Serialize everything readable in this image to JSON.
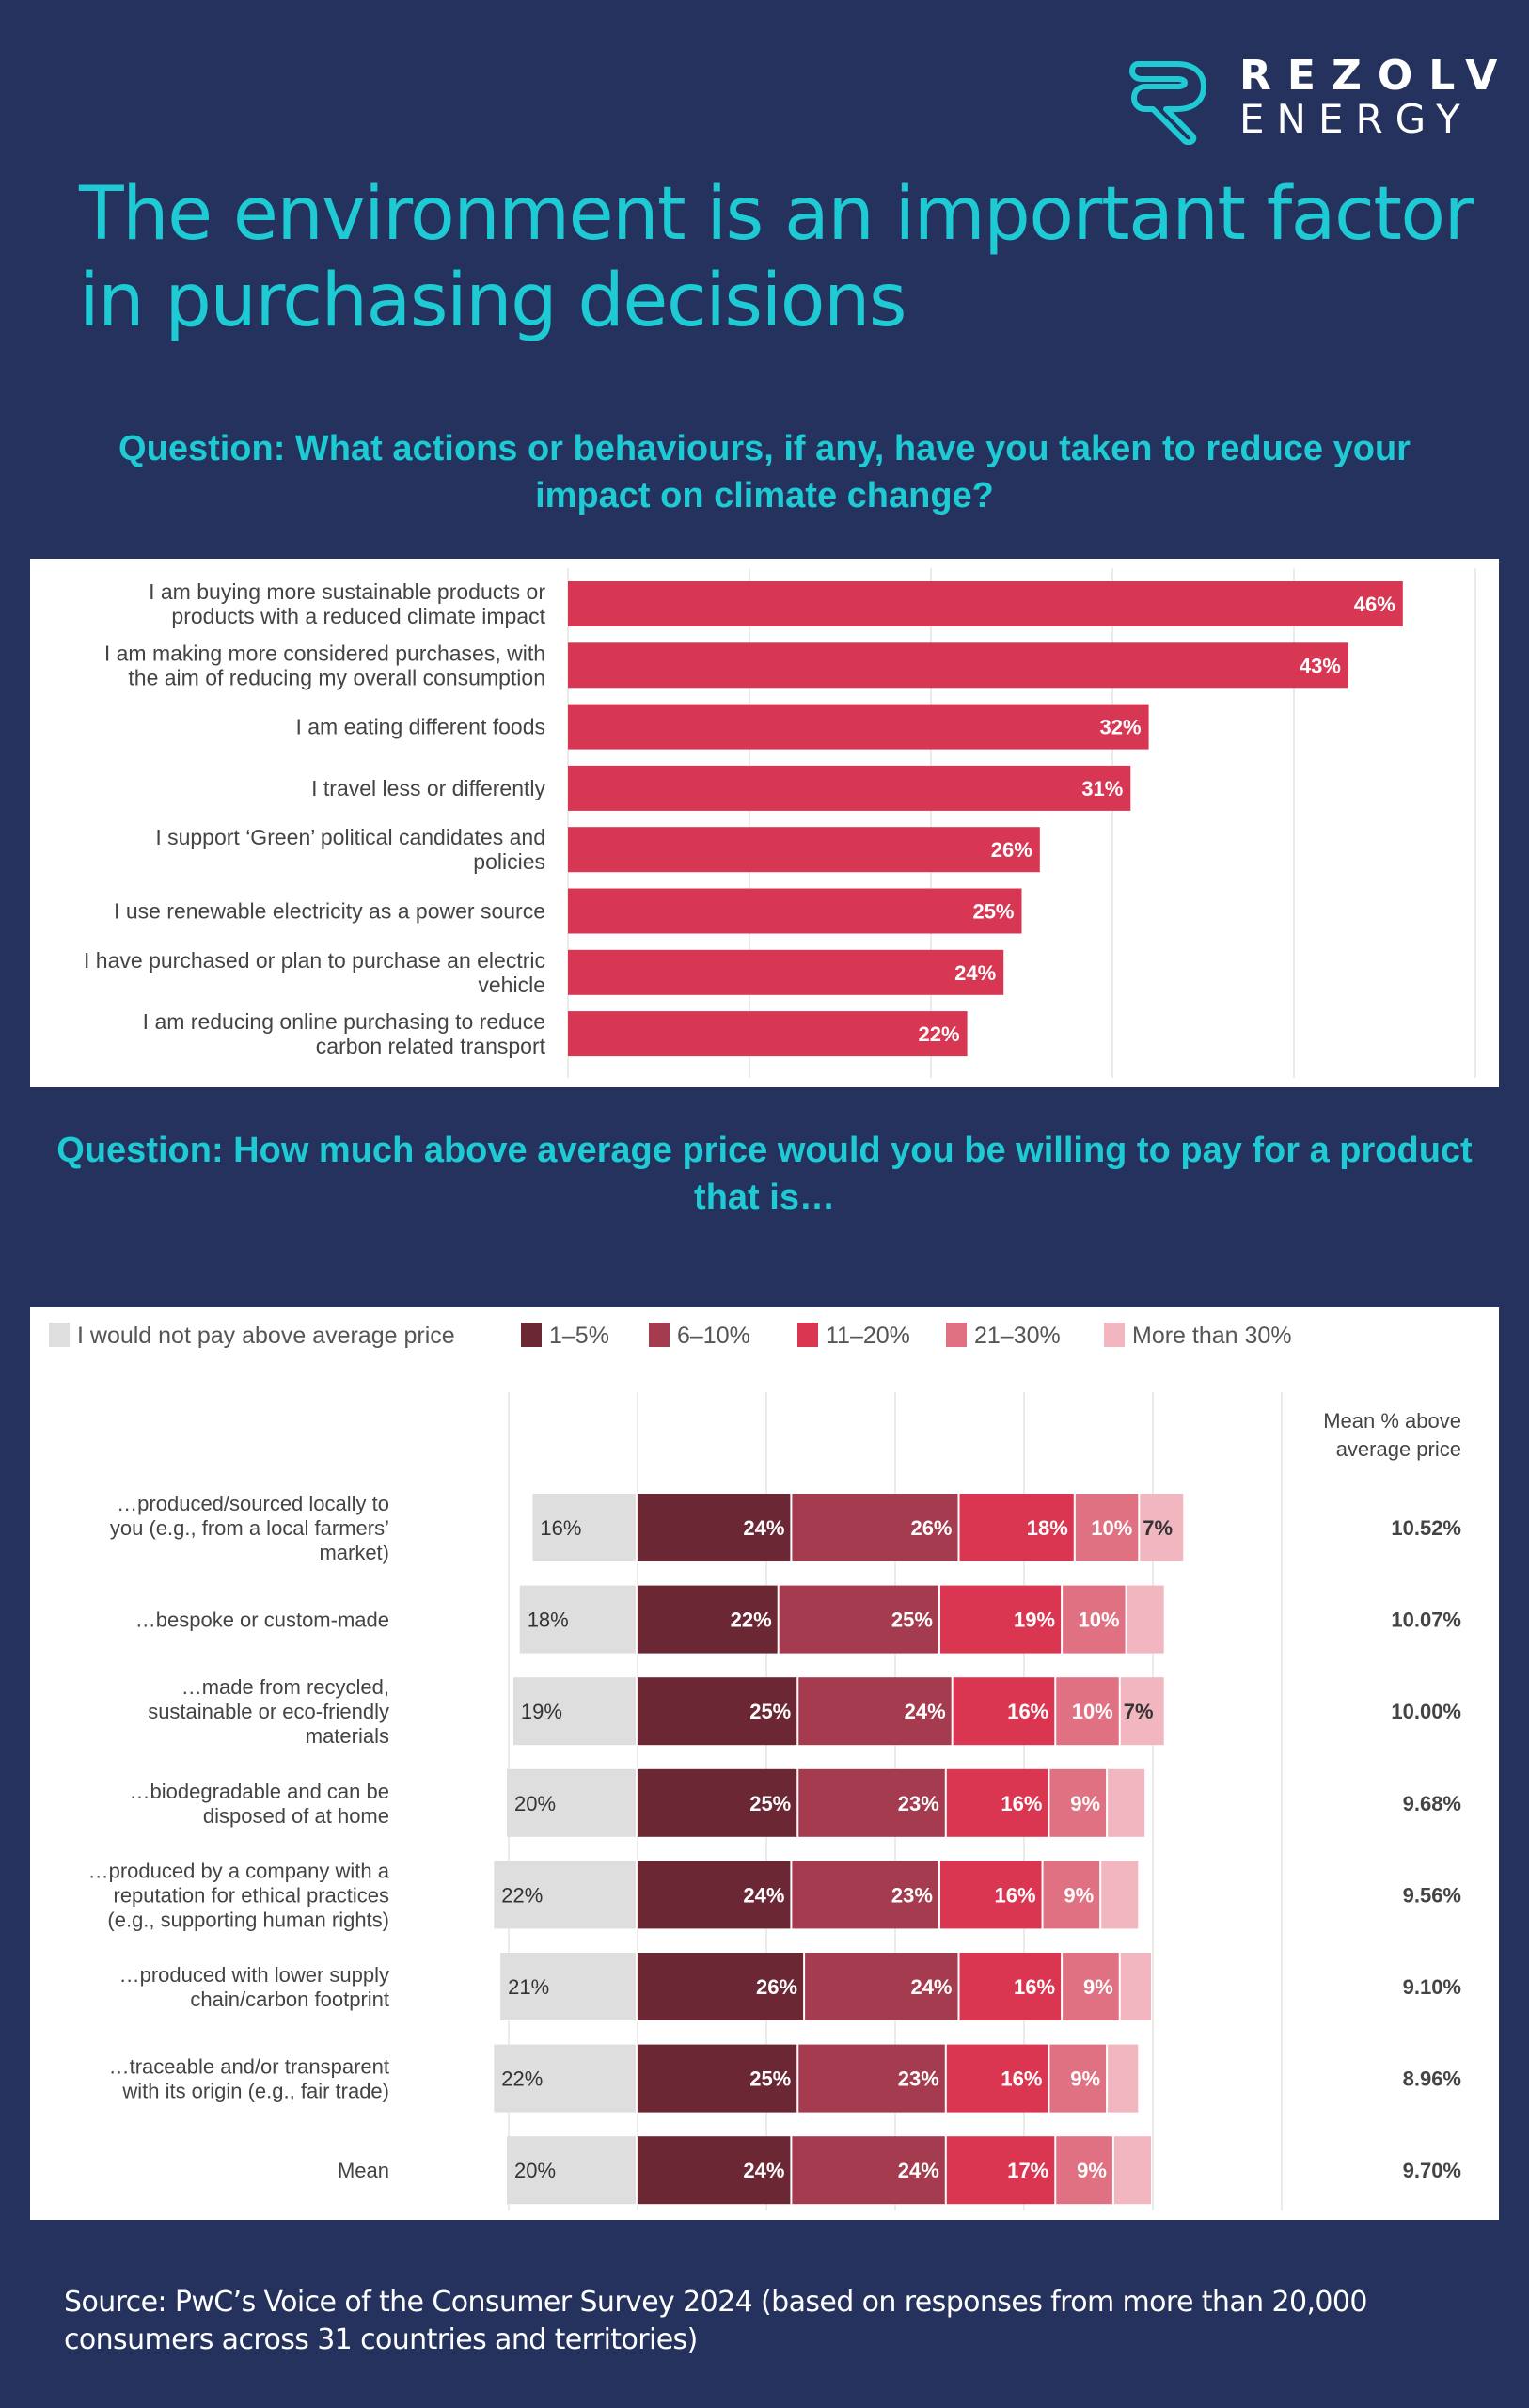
{
  "brand": {
    "logo_icon": "rezolv-r-icon",
    "name_line1": "REZOLV",
    "name_line2": "ENERGY",
    "accent_color": "#1ecad3",
    "background_color": "#25325e"
  },
  "page_title": "The environment is an important factor in purchasing decisions",
  "page_title_lines": [
    "The environment is an important factor",
    "in purchasing decisions"
  ],
  "question1": "Question: What actions or behaviours, if any, have you taken to reduce your impact on climate change?",
  "question2": "Question: How much above average price would you be willing to pay for a product that is…",
  "source": "Source: PwC’s Voice of the Consumer Survey 2024 (based on responses from more than 20,000 consumers across 31 countries and territories)",
  "chart_data": [
    {
      "type": "bar",
      "orientation": "horizontal",
      "title": "What actions or behaviours, if any, have you taken to reduce your impact on climate change?",
      "xlabel": "",
      "ylabel": "",
      "xlim": [
        0,
        50
      ],
      "grid": true,
      "bar_color": "#d73753",
      "categories": [
        [
          "I am buying more sustainable products or",
          "products with a reduced climate impact"
        ],
        [
          "I am making more considered purchases, with",
          "the aim of reducing my overall consumption"
        ],
        [
          "I am eating different foods"
        ],
        [
          "I travel less or differently"
        ],
        [
          "I support ‘Green’ political candidates and",
          "policies"
        ],
        [
          "I use renewable electricity as a power source"
        ],
        [
          "I have purchased or plan to purchase an electric",
          "vehicle"
        ],
        [
          "I am reducing online purchasing to reduce",
          "carbon related transport"
        ]
      ],
      "values": [
        46,
        43,
        32,
        31,
        26,
        25,
        24,
        22
      ],
      "data_labels": [
        "46%",
        "43%",
        "32%",
        "31%",
        "26%",
        "25%",
        "24%",
        "22%"
      ]
    },
    {
      "type": "bar",
      "orientation": "horizontal",
      "stacked": true,
      "diverging": true,
      "title": "How much above average price would you be willing to pay for a product that is…",
      "xlabel": "",
      "ylabel": "",
      "xlim": [
        -30,
        90
      ],
      "grid": true,
      "legend_position": "top-left",
      "mean_column_header": [
        "Mean % above",
        "average price"
      ],
      "categories": [
        [
          "…produced/sourced locally to",
          "you (e.g., from a local farmers’",
          "market)"
        ],
        [
          "…bespoke or custom-made"
        ],
        [
          "…made from recycled,",
          "sustainable or eco-friendly",
          "materials"
        ],
        [
          "…biodegradable and can be",
          "disposed of at home"
        ],
        [
          "…produced by a company with a",
          "reputation for ethical practices",
          "(e.g., supporting human rights)"
        ],
        [
          "…produced with lower supply",
          "chain/carbon footprint"
        ],
        [
          "…traceable and/or transparent",
          "with its origin (e.g., fair trade)"
        ],
        [
          "Mean"
        ]
      ],
      "series": [
        {
          "name": "I would not pay above average price",
          "color": "#dedede",
          "label_color": "#333333",
          "values": [
            16,
            18,
            19,
            20,
            22,
            21,
            22,
            20
          ],
          "labels": [
            "16%",
            "18%",
            "19%",
            "20%",
            "22%",
            "21%",
            "22%",
            "20%"
          ]
        },
        {
          "name": "1–5%",
          "color": "#6c2734",
          "label_color": "#ffffff",
          "values": [
            24,
            22,
            25,
            25,
            24,
            26,
            25,
            24
          ],
          "labels": [
            "24%",
            "22%",
            "25%",
            "25%",
            "24%",
            "26%",
            "25%",
            "24%"
          ]
        },
        {
          "name": "6–10%",
          "color": "#a43b4e",
          "label_color": "#ffffff",
          "values": [
            26,
            25,
            24,
            23,
            23,
            24,
            23,
            24
          ],
          "labels": [
            "26%",
            "25%",
            "24%",
            "23%",
            "23%",
            "24%",
            "23%",
            "24%"
          ]
        },
        {
          "name": "11–20%",
          "color": "#da3652",
          "label_color": "#ffffff",
          "values": [
            18,
            19,
            16,
            16,
            16,
            16,
            16,
            17
          ],
          "labels": [
            "18%",
            "19%",
            "16%",
            "16%",
            "16%",
            "16%",
            "16%",
            "17%"
          ]
        },
        {
          "name": "21–30%",
          "color": "#e07183",
          "label_color": "#ffffff",
          "values": [
            10,
            10,
            10,
            9,
            9,
            9,
            9,
            9
          ],
          "labels": [
            "10%",
            "10%",
            "10%",
            "9%",
            "9%",
            "9%",
            "9%",
            "9%"
          ]
        },
        {
          "name": "More than 30%",
          "color": "#f1b6c0",
          "label_color": "#333333",
          "values": [
            7,
            6,
            7,
            6,
            6,
            5,
            5,
            6
          ],
          "labels": [
            "7%",
            "",
            "7%",
            "",
            "",
            "",
            "",
            ""
          ]
        }
      ],
      "mean_values": [
        "10.52%",
        "10.07%",
        "10.00%",
        "9.68%",
        "9.56%",
        "9.10%",
        "8.96%",
        "9.70%"
      ]
    }
  ]
}
